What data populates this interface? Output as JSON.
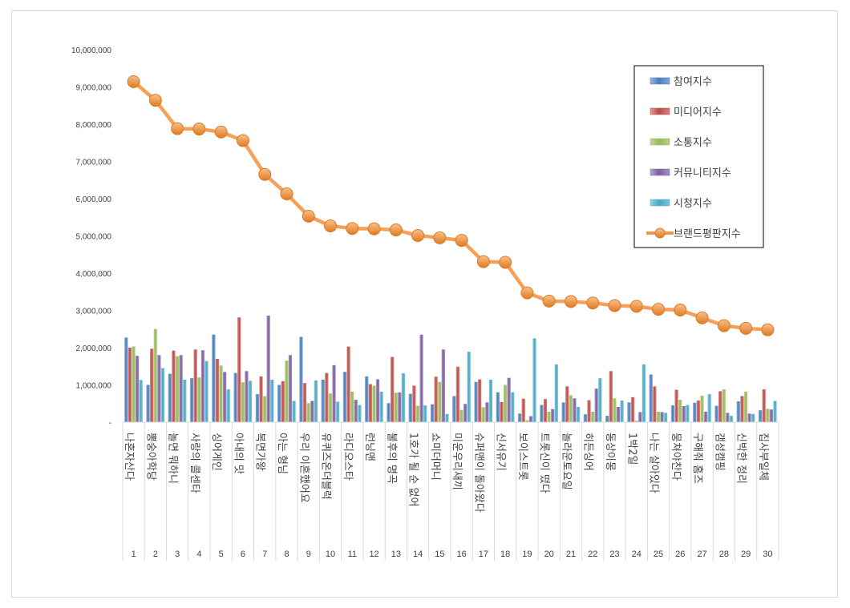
{
  "chart_data": {
    "type": "bar",
    "title": "",
    "xlabel": "",
    "ylabel": "",
    "ylim": [
      0,
      10000000
    ],
    "yticks": [
      0,
      1000000,
      2000000,
      3000000,
      4000000,
      5000000,
      6000000,
      7000000,
      8000000,
      9000000,
      10000000
    ],
    "ytick_labels": [
      "-",
      "1,000,000",
      "2,000,000",
      "3,000,000",
      "4,000,000",
      "5,000,000",
      "6,000,000",
      "7,000,000",
      "8,000,000",
      "9,000,000",
      "10,000,000"
    ],
    "grid": false,
    "legend_position": "top-right",
    "ranks": [
      "1",
      "2",
      "3",
      "4",
      "5",
      "6",
      "7",
      "8",
      "9",
      "10",
      "11",
      "12",
      "13",
      "14",
      "15",
      "16",
      "17",
      "18",
      "19",
      "20",
      "21",
      "22",
      "23",
      "24",
      "25",
      "26",
      "27",
      "28",
      "29",
      "30"
    ],
    "categories": [
      "나혼자산다",
      "뽕숭아학당",
      "놀면 뭐하니",
      "사랑의 콜센타",
      "싱어게인",
      "아내의 맛",
      "복면가왕",
      "아는 형님",
      "우리 이혼했어요",
      "유퀴즈온더블럭",
      "라디오스타",
      "런닝맨",
      "불후의 명곡",
      "1호가 될 순 없어",
      "쇼미더머니",
      "미운우리새끼",
      "슈퍼맨이 돌아왔다",
      "신서유기",
      "보이스트롯",
      "트롯신이 떴다",
      "놀라운토요일",
      "히든싱어",
      "동상이몽",
      "1박2일",
      "나는 살아있다",
      "뭉쳐야찬다",
      "구해줘 홈즈",
      "갬성캠핑",
      "신박한 정리",
      "집사부일체"
    ],
    "series": [
      {
        "name": "참여지수",
        "kind": "bar",
        "color": "#4a7ebb",
        "values": [
          2270000,
          1000000,
          1300000,
          1180000,
          2350000,
          1320000,
          750000,
          1000000,
          2290000,
          1140000,
          1350000,
          1230000,
          510000,
          760000,
          480000,
          700000,
          1080000,
          800000,
          230000,
          460000,
          530000,
          210000,
          170000,
          530000,
          1280000,
          450000,
          520000,
          440000,
          560000,
          320000
        ]
      },
      {
        "name": "미디어지수",
        "kind": "bar",
        "color": "#be4b48",
        "values": [
          2000000,
          1970000,
          1920000,
          1950000,
          1700000,
          2810000,
          1230000,
          1100000,
          1050000,
          1320000,
          2030000,
          1020000,
          1750000,
          980000,
          1220000,
          1490000,
          1150000,
          540000,
          630000,
          620000,
          960000,
          590000,
          1370000,
          670000,
          960000,
          870000,
          580000,
          830000,
          700000,
          880000
        ]
      },
      {
        "name": "소통지수",
        "kind": "bar",
        "color": "#98b954",
        "values": [
          2030000,
          2500000,
          1770000,
          1200000,
          1520000,
          1070000,
          700000,
          1650000,
          510000,
          770000,
          820000,
          980000,
          790000,
          440000,
          1080000,
          330000,
          400000,
          1000000,
          50000,
          280000,
          720000,
          280000,
          640000,
          40000,
          280000,
          600000,
          710000,
          880000,
          820000,
          360000
        ]
      },
      {
        "name": "커뮤니티지수",
        "kind": "bar",
        "color": "#7d60a0",
        "values": [
          1780000,
          1800000,
          1800000,
          1930000,
          1350000,
          1370000,
          2860000,
          1800000,
          570000,
          1530000,
          600000,
          1150000,
          800000,
          2350000,
          1950000,
          490000,
          530000,
          1190000,
          160000,
          350000,
          640000,
          900000,
          410000,
          270000,
          270000,
          430000,
          280000,
          250000,
          230000,
          340000
        ]
      },
      {
        "name": "시청지수",
        "kind": "bar",
        "color": "#46aac5",
        "values": [
          1130000,
          1450000,
          1140000,
          1640000,
          880000,
          1110000,
          1140000,
          570000,
          1120000,
          550000,
          460000,
          820000,
          1310000,
          450000,
          220000,
          1890000,
          1140000,
          800000,
          2250000,
          1550000,
          410000,
          1180000,
          580000,
          1550000,
          250000,
          460000,
          750000,
          170000,
          220000,
          570000
        ]
      },
      {
        "name": "브랜드평판지수",
        "kind": "line",
        "color": "#f79646",
        "values": [
          9140000,
          8640000,
          7880000,
          7870000,
          7790000,
          7560000,
          6650000,
          6130000,
          5530000,
          5270000,
          5200000,
          5190000,
          5160000,
          5010000,
          4950000,
          4880000,
          4310000,
          4290000,
          3470000,
          3250000,
          3240000,
          3200000,
          3130000,
          3110000,
          3030000,
          3010000,
          2800000,
          2590000,
          2520000,
          2480000
        ]
      }
    ]
  }
}
